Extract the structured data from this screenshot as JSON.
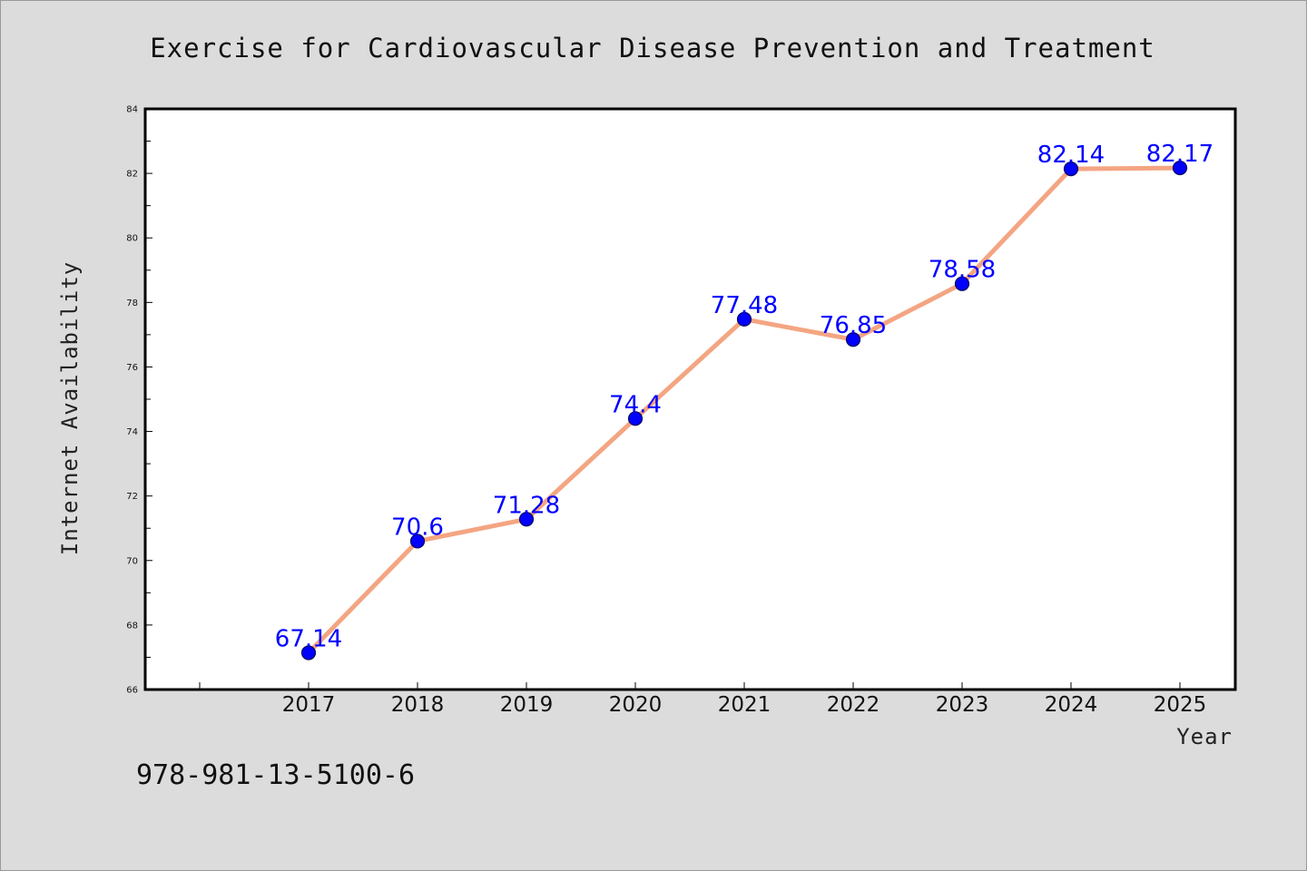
{
  "chart_data": {
    "type": "line",
    "title": "Exercise for Cardiovascular Disease Prevention and Treatment",
    "xlabel": "Year",
    "ylabel": "Internet Availability",
    "categories": [
      "2017",
      "2018",
      "2019",
      "2020",
      "2021",
      "2022",
      "2023",
      "2024",
      "2025"
    ],
    "series": [
      {
        "values": [
          67.14,
          70.6,
          71.28,
          74.4,
          77.48,
          76.85,
          78.58,
          82.14,
          82.17
        ],
        "labels": [
          "67.14",
          "70.6",
          "71.28",
          "74.4",
          "77.48",
          "76.85",
          "78.58",
          "82.14",
          "82.17"
        ]
      }
    ],
    "ylim": [
      66,
      84
    ],
    "yticks": [
      "66",
      "68",
      "70",
      "72",
      "74",
      "76",
      "78",
      "80",
      "82",
      "84"
    ],
    "grid": false,
    "legend": "none",
    "colors": {
      "line": "#f4a582",
      "marker": "#0000ff",
      "marker_edge": "#0a0a5a",
      "data_label": "#0000ff",
      "page_background": "#dcdcdc",
      "plot_background": "#ffffff"
    }
  },
  "footer": {
    "text": "978-981-13-5100-6"
  }
}
